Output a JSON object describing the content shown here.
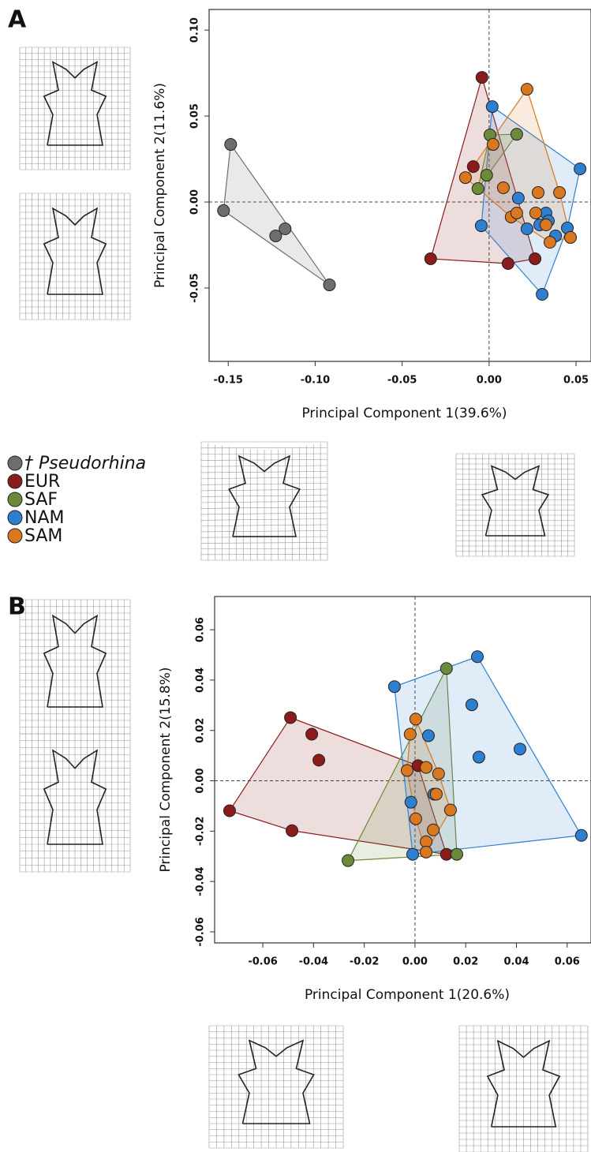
{
  "chart_data": [
    {
      "type": "scatter",
      "panel": "A",
      "x_label": "Principal Component 1(39.6%)",
      "y_label": "Principal Component 2(11.6%)",
      "xlim": [
        -0.161,
        0.0586
      ],
      "ylim": [
        -0.0927,
        0.112
      ],
      "xticks": [
        {
          "value": -0.15,
          "label": "-0.15"
        },
        {
          "value": -0.1,
          "label": "-0.10"
        },
        {
          "value": -0.05,
          "label": "-0.05"
        },
        {
          "value": 0,
          "label": "0.00"
        },
        {
          "value": 0.05,
          "label": "0.05"
        }
      ],
      "yticks": [
        {
          "value": -0.05,
          "label": "-0.05"
        },
        {
          "value": 0,
          "label": "0.00"
        },
        {
          "value": 0.05,
          "label": "0.05"
        },
        {
          "value": 0.1,
          "label": "0.10"
        }
      ],
      "series": [
        {
          "name": "† Pseudorhina",
          "color": "#6e6e6e",
          "x": [
            -0.1486,
            -0.1527,
            -0.1227,
            -0.1173,
            -0.0918
          ],
          "values": [
            0.0335,
            -0.005,
            -0.0197,
            -0.0156,
            -0.0482
          ]
        },
        {
          "name": "EUR",
          "color": "#8b1c1c",
          "x": [
            -0.0041,
            -0.0091,
            -0.0336,
            0.0109,
            0.0264
          ],
          "values": [
            0.0725,
            0.0206,
            -0.033,
            -0.0358,
            -0.033
          ]
        },
        {
          "name": "SAF",
          "color": "#6b8a3a",
          "x": [
            0.0005,
            0.0159,
            -0.0064,
            -0.0014
          ],
          "values": [
            0.039,
            0.0394,
            0.0078,
            0.0156
          ]
        },
        {
          "name": "NAM",
          "color": "#2f7fd0",
          "x": [
            0.0018,
            0.0523,
            -0.0045,
            0.0305,
            0.0168,
            0.0218,
            0.0327,
            0.0341,
            0.0382,
            0.045,
            0.0291
          ],
          "values": [
            0.0555,
            0.0193,
            -0.0138,
            -0.0537,
            0.0023,
            -0.0156,
            -0.0064,
            -0.011,
            -0.0197,
            -0.0151,
            -0.0133
          ]
        },
        {
          "name": "SAM",
          "color": "#d9781f",
          "x": [
            0.0218,
            0.0023,
            -0.0136,
            0.0082,
            0.0282,
            0.0405,
            0.0127,
            0.0159,
            0.0268,
            0.0327,
            0.035,
            0.0468
          ],
          "values": [
            0.0656,
            0.0335,
            0.0142,
            0.0083,
            0.0055,
            0.0055,
            -0.0087,
            -0.0064,
            -0.0064,
            -0.0133,
            -0.0234,
            -0.0206
          ]
        }
      ]
    },
    {
      "type": "scatter",
      "panel": "B",
      "x_label": "Principal Component 1(20.6%)",
      "y_label": "Principal Component 2(15.8%)",
      "xlim": [
        -0.079,
        0.0694
      ],
      "ylim": [
        -0.0644,
        0.0732
      ],
      "xticks": [
        {
          "value": -0.06,
          "label": "-0.06"
        },
        {
          "value": -0.04,
          "label": "-0.04"
        },
        {
          "value": -0.02,
          "label": "-0.02"
        },
        {
          "value": 0,
          "label": "0.00"
        },
        {
          "value": 0.02,
          "label": "0.02"
        },
        {
          "value": 0.04,
          "label": "0.04"
        },
        {
          "value": 0.06,
          "label": "0.06"
        }
      ],
      "yticks": [
        {
          "value": -0.06,
          "label": "-0.06"
        },
        {
          "value": -0.04,
          "label": "-0.04"
        },
        {
          "value": -0.02,
          "label": "-0.02"
        },
        {
          "value": 0,
          "label": "0.00"
        },
        {
          "value": 0.02,
          "label": "0.02"
        },
        {
          "value": 0.04,
          "label": "0.04"
        },
        {
          "value": 0.06,
          "label": "0.06"
        }
      ],
      "series": [
        {
          "name": "EUR",
          "color": "#8b1c1c",
          "x": [
            -0.0731,
            -0.0491,
            -0.0407,
            -0.0379,
            -0.0485,
            0.0012,
            0.0124
          ],
          "values": [
            -0.0119,
            0.0251,
            0.0185,
            0.0082,
            -0.0198,
            0.006,
            -0.0292
          ]
        },
        {
          "name": "SAF",
          "color": "#6b8a3a",
          "x": [
            0.0124,
            -0.0264,
            0.0165
          ],
          "values": [
            0.0446,
            -0.0317,
            -0.0292
          ]
        },
        {
          "name": "NAM",
          "color": "#2f7fd0",
          "x": [
            0.0246,
            -0.0081,
            0.0224,
            0.0414,
            0.0252,
            0.0656,
            0.0053,
            -0.0009,
            -0.0016,
            0.0075
          ],
          "values": [
            0.0493,
            0.0374,
            0.0302,
            0.0126,
            0.0094,
            -0.0217,
            0.0179,
            -0.0292,
            -0.0085,
            -0.0053
          ]
        },
        {
          "name": "SAM",
          "color": "#d9781f",
          "x": [
            0.0003,
            -0.0019,
            -0.0031,
            0.0044,
            0.0093,
            0.0084,
            0.014,
            0.0072,
            0.0003,
            0.0044,
            0.0044
          ],
          "values": [
            0.0245,
            0.0185,
            0.0041,
            0.0053,
            0.0028,
            -0.0053,
            -0.0116,
            -0.0195,
            -0.0151,
            -0.0242,
            -0.0283
          ]
        }
      ]
    }
  ]
}
